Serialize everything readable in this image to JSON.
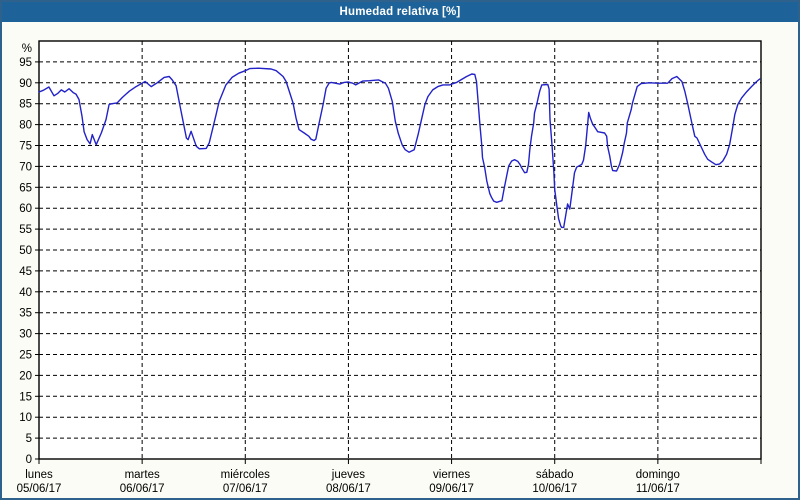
{
  "window": {
    "title": "Humedad relativa [%]"
  },
  "colors": {
    "titlebar_bg": "#1d6399",
    "title_text": "#ffffff",
    "frame_border": "#2e628c",
    "window_bg": "#fbfcf5",
    "plot_bg": "#ffffff",
    "grid_and_axis": "#000000",
    "line": "#2222c8",
    "tick_label_text": "#000000"
  },
  "chart_data": {
    "type": "line",
    "title": "Humedad relativa [%]",
    "grid": "dashed-both-axes",
    "legend": "none",
    "y_axis": {
      "unit_label": "%",
      "min": 0,
      "max": 100,
      "tick_step": 5,
      "tick_labels": [
        0,
        5,
        10,
        15,
        20,
        25,
        30,
        35,
        40,
        45,
        50,
        55,
        60,
        65,
        70,
        75,
        80,
        85,
        90,
        95
      ]
    },
    "x_axis": {
      "hours_total": 168,
      "days": [
        {
          "name": "lunes",
          "date": "05/06/17"
        },
        {
          "name": "martes",
          "date": "06/06/17"
        },
        {
          "name": "miércoles",
          "date": "07/06/17"
        },
        {
          "name": "jueves",
          "date": "08/06/17"
        },
        {
          "name": "viernes",
          "date": "09/06/17"
        },
        {
          "name": "sábado",
          "date": "10/06/17"
        },
        {
          "name": "domingo",
          "date": "11/06/17"
        }
      ]
    },
    "series": [
      {
        "name": "Humedad relativa",
        "color": "#2222c8",
        "points": [
          [
            0,
            87.8
          ],
          [
            1,
            88.2
          ],
          [
            2.3,
            89.0
          ],
          [
            3.5,
            86.9
          ],
          [
            4.4,
            87.5
          ],
          [
            5.2,
            88.3
          ],
          [
            6,
            87.8
          ],
          [
            7,
            88.6
          ],
          [
            8,
            87.6
          ],
          [
            8.6,
            87.3
          ],
          [
            9.3,
            86.0
          ],
          [
            10,
            82.0
          ],
          [
            10.5,
            78.3
          ],
          [
            11.2,
            76.4
          ],
          [
            11.9,
            75.4
          ],
          [
            12.4,
            77.6
          ],
          [
            13.3,
            75.2
          ],
          [
            14.5,
            78.0
          ],
          [
            15.6,
            81.2
          ],
          [
            16.3,
            84.8
          ],
          [
            17,
            85.0
          ],
          [
            18.2,
            85.2
          ],
          [
            19.4,
            86.5
          ],
          [
            21,
            88.0
          ],
          [
            22.6,
            89.1
          ],
          [
            24,
            89.9
          ],
          [
            24.7,
            90.3
          ],
          [
            26.1,
            89.1
          ],
          [
            27.5,
            90.0
          ],
          [
            29.1,
            91.3
          ],
          [
            30.3,
            91.5
          ],
          [
            31,
            90.7
          ],
          [
            31.9,
            89.3
          ],
          [
            32.9,
            84.0
          ],
          [
            34.3,
            76.8
          ],
          [
            34.7,
            76.4
          ],
          [
            35.4,
            78.4
          ],
          [
            36.6,
            74.8
          ],
          [
            37.3,
            74.2
          ],
          [
            38.9,
            74.3
          ],
          [
            39.6,
            75.6
          ],
          [
            41.2,
            82.4
          ],
          [
            41.9,
            85.5
          ],
          [
            43.5,
            89.5
          ],
          [
            44.9,
            91.3
          ],
          [
            46.5,
            92.3
          ],
          [
            48,
            92.9
          ],
          [
            49,
            93.4
          ],
          [
            51,
            93.5
          ],
          [
            54,
            93.3
          ],
          [
            55.2,
            92.9
          ],
          [
            56.8,
            91.5
          ],
          [
            57.5,
            90.3
          ],
          [
            59.1,
            85.2
          ],
          [
            59.8,
            81.6
          ],
          [
            60.5,
            78.8
          ],
          [
            61.7,
            78.0
          ],
          [
            62.8,
            77.2
          ],
          [
            63.3,
            76.5
          ],
          [
            64,
            76.2
          ],
          [
            64.4,
            76.5
          ],
          [
            65.1,
            80.0
          ],
          [
            66.1,
            84.8
          ],
          [
            66.8,
            88.7
          ],
          [
            67.5,
            89.9
          ],
          [
            68,
            90.1
          ],
          [
            70,
            89.7
          ],
          [
            71,
            90.1
          ],
          [
            72,
            90.2
          ],
          [
            73,
            89.9
          ],
          [
            73.7,
            89.5
          ],
          [
            75.3,
            90.4
          ],
          [
            76.9,
            90.5
          ],
          [
            79,
            90.7
          ],
          [
            80.6,
            89.9
          ],
          [
            81.3,
            88.7
          ],
          [
            82.2,
            85.5
          ],
          [
            82.9,
            80.8
          ],
          [
            83.6,
            77.9
          ],
          [
            84.5,
            75.2
          ],
          [
            85.2,
            74.0
          ],
          [
            86.1,
            73.4
          ],
          [
            87.3,
            74.0
          ],
          [
            88.2,
            77.6
          ],
          [
            88.9,
            80.8
          ],
          [
            89.8,
            84.8
          ],
          [
            90.5,
            86.7
          ],
          [
            91.6,
            88.3
          ],
          [
            92.8,
            89.1
          ],
          [
            94,
            89.5
          ],
          [
            95.6,
            89.5
          ],
          [
            96,
            89.7
          ],
          [
            97.2,
            90.1
          ],
          [
            98.3,
            90.8
          ],
          [
            99.5,
            91.5
          ],
          [
            100.7,
            92.1
          ],
          [
            101.4,
            92.0
          ],
          [
            101.8,
            90.3
          ],
          [
            102.1,
            86.4
          ],
          [
            102.6,
            80.0
          ],
          [
            103,
            75.2
          ],
          [
            103.2,
            72.1
          ],
          [
            103.7,
            69.7
          ],
          [
            104.2,
            66.5
          ],
          [
            104.9,
            63.5
          ],
          [
            105.3,
            62.6
          ],
          [
            105.8,
            61.7
          ],
          [
            106.5,
            61.4
          ],
          [
            107.7,
            61.8
          ],
          [
            108.2,
            64.5
          ],
          [
            108.9,
            68.1
          ],
          [
            109.3,
            70.1
          ],
          [
            110,
            71.3
          ],
          [
            110.7,
            71.6
          ],
          [
            111.4,
            71.2
          ],
          [
            111.9,
            70.5
          ],
          [
            112.3,
            69.7
          ],
          [
            113,
            68.5
          ],
          [
            113.5,
            68.6
          ],
          [
            113.9,
            70.5
          ],
          [
            114.2,
            74.0
          ],
          [
            114.6,
            77.2
          ],
          [
            115.1,
            80.4
          ],
          [
            115.3,
            82.8
          ],
          [
            115.8,
            84.8
          ],
          [
            116.5,
            88.0
          ],
          [
            117,
            89.5
          ],
          [
            118.4,
            89.6
          ],
          [
            118.7,
            88.5
          ],
          [
            118.9,
            81.2
          ],
          [
            119.4,
            74.8
          ],
          [
            119.8,
            68.5
          ],
          [
            120,
            64.5
          ],
          [
            120.5,
            60.5
          ],
          [
            120.9,
            57.5
          ],
          [
            121.4,
            55.8
          ],
          [
            121.6,
            55.4
          ],
          [
            122.1,
            55.4
          ],
          [
            122.5,
            58.0
          ],
          [
            123,
            61.0
          ],
          [
            123.5,
            59.8
          ],
          [
            124.2,
            65.3
          ],
          [
            124.6,
            68.5
          ],
          [
            125.1,
            69.8
          ],
          [
            126.3,
            70.5
          ],
          [
            126.7,
            71.5
          ],
          [
            127.2,
            75.0
          ],
          [
            127.9,
            82.9
          ],
          [
            128.3,
            81.5
          ],
          [
            128.8,
            80.2
          ],
          [
            129.7,
            78.8
          ],
          [
            130,
            78.3
          ],
          [
            131.6,
            78.0
          ],
          [
            132.1,
            77.2
          ],
          [
            132.3,
            74.8
          ],
          [
            132.8,
            72.5
          ],
          [
            133.2,
            70.1
          ],
          [
            133.5,
            69.0
          ],
          [
            134.4,
            68.9
          ],
          [
            135.1,
            70.5
          ],
          [
            135.8,
            73.3
          ],
          [
            136.2,
            75.6
          ],
          [
            136.7,
            78.0
          ],
          [
            136.9,
            80.4
          ],
          [
            137.8,
            83.6
          ],
          [
            138.1,
            85.2
          ],
          [
            139.2,
            89.1
          ],
          [
            140.1,
            89.8
          ],
          [
            142,
            90.0
          ],
          [
            144,
            89.9
          ],
          [
            146.3,
            89.9
          ],
          [
            147.3,
            91.0
          ],
          [
            148.4,
            91.5
          ],
          [
            149.6,
            90.3
          ],
          [
            150.3,
            87.9
          ],
          [
            151,
            84.8
          ],
          [
            151.9,
            80.4
          ],
          [
            152.6,
            77.2
          ],
          [
            153.1,
            76.8
          ],
          [
            154.2,
            74.4
          ],
          [
            154.9,
            72.9
          ],
          [
            155.6,
            71.7
          ],
          [
            156.6,
            71.0
          ],
          [
            157.5,
            70.4
          ],
          [
            158.4,
            70.6
          ],
          [
            159.1,
            71.3
          ],
          [
            160,
            72.9
          ],
          [
            160.7,
            75.2
          ],
          [
            161.4,
            79.2
          ],
          [
            161.9,
            82.4
          ],
          [
            162.6,
            84.8
          ],
          [
            163.5,
            86.4
          ],
          [
            164.7,
            87.9
          ],
          [
            165.8,
            89.1
          ],
          [
            167,
            90.3
          ],
          [
            167.7,
            90.9
          ]
        ]
      }
    ]
  }
}
